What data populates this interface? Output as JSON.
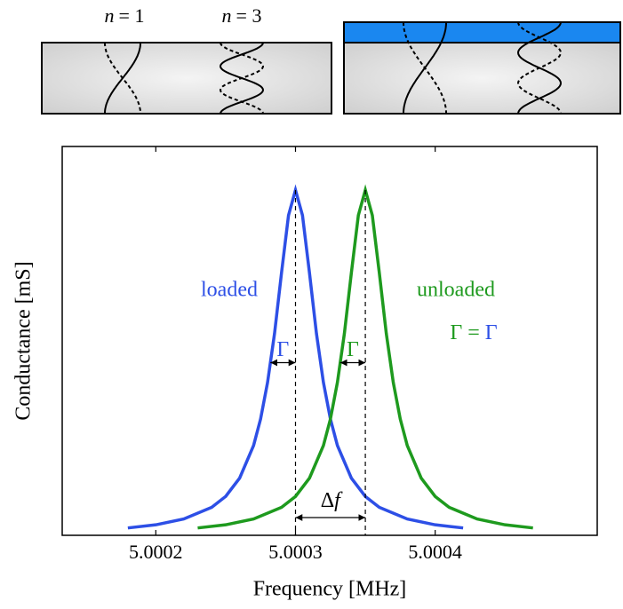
{
  "chart_data": {
    "type": "line",
    "x_label": "Frequency [MHz]",
    "y_label": "Conductance [mS]",
    "xlim": [
      5.000133,
      5.000516
    ],
    "ylim": [
      0,
      1
    ],
    "xticks": [
      5.0002,
      5.0003,
      5.0004
    ],
    "series": [
      {
        "name": "loaded",
        "color": "#2d4fe6",
        "x": [
          5.00018,
          5.0002,
          5.00022,
          5.00024,
          5.00025,
          5.00026,
          5.00027,
          5.000275,
          5.00028,
          5.000285,
          5.00029,
          5.000295,
          5.0003,
          5.000305,
          5.00031,
          5.000315,
          5.00032,
          5.000325,
          5.00033,
          5.00034,
          5.00035,
          5.00036,
          5.00038,
          5.0004,
          5.00042
        ],
        "values": [
          0.019,
          0.027,
          0.042,
          0.072,
          0.1,
          0.147,
          0.231,
          0.299,
          0.393,
          0.519,
          0.675,
          0.823,
          0.888,
          0.823,
          0.675,
          0.519,
          0.393,
          0.299,
          0.231,
          0.147,
          0.1,
          0.072,
          0.042,
          0.027,
          0.019
        ]
      },
      {
        "name": "unloaded",
        "color": "#1e9a1e",
        "x": [
          5.00023,
          5.00025,
          5.00027,
          5.00029,
          5.0003,
          5.00031,
          5.00032,
          5.000325,
          5.00033,
          5.000335,
          5.00034,
          5.000345,
          5.00035,
          5.000355,
          5.00036,
          5.000365,
          5.00037,
          5.000375,
          5.00038,
          5.00039,
          5.0004,
          5.00041,
          5.00043,
          5.00045,
          5.00047
        ],
        "values": [
          0.019,
          0.027,
          0.042,
          0.072,
          0.1,
          0.147,
          0.231,
          0.299,
          0.393,
          0.519,
          0.675,
          0.823,
          0.888,
          0.823,
          0.675,
          0.519,
          0.393,
          0.299,
          0.231,
          0.147,
          0.1,
          0.072,
          0.042,
          0.027,
          0.019
        ]
      }
    ],
    "annotations": {
      "width": "Γ",
      "equality": [
        "Γ",
        "=",
        "Γ"
      ],
      "shift": [
        "Δ",
        "f"
      ]
    },
    "modes": [
      [
        "n",
        "= 1"
      ],
      [
        "n",
        "= 3"
      ]
    ]
  }
}
